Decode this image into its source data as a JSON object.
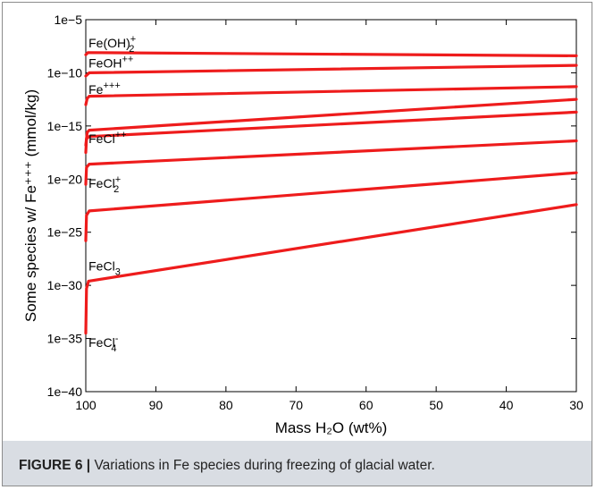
{
  "figure": {
    "label": "FIGURE 6 |",
    "caption": " Variations in Fe species during freezing of glacial water."
  },
  "chart_data": {
    "type": "line",
    "xlabel": "Mass H₂O (wt%)",
    "ylabel": "Some species w/ Fe⁺⁺⁺ (mmol/kg)",
    "x_reversed": true,
    "xlim": [
      100,
      30
    ],
    "y_scale": "log",
    "ylim_exponent": [
      -40,
      -5
    ],
    "x_ticks": [
      "100",
      "90",
      "80",
      "70",
      "60",
      "50",
      "40",
      "30"
    ],
    "x_tick_values": [
      100,
      90,
      80,
      70,
      60,
      50,
      40,
      30
    ],
    "y_ticks": [
      "1e−40",
      "1e−35",
      "1e−30",
      "1e−25",
      "1e−20",
      "1e−15",
      "1e−10",
      "1e−5"
    ],
    "y_tick_exponents": [
      -40,
      -35,
      -30,
      -25,
      -20,
      -15,
      -10,
      -5
    ],
    "grid": false,
    "line_color": "#ee1c1c",
    "series": [
      {
        "name": "Fe(OH)₂⁺",
        "x": [
          100,
          99.7,
          30
        ],
        "log_y": [
          -8.3,
          -8.1,
          -8.4
        ]
      },
      {
        "name": "FeOH⁺⁺",
        "x": [
          100,
          99.5,
          30
        ],
        "log_y": [
          -10.3,
          -10.0,
          -9.3
        ]
      },
      {
        "name": "Fe⁺⁺⁺",
        "x": [
          100,
          99.8,
          99.5,
          30
        ],
        "log_y": [
          -13.0,
          -12.4,
          -12.2,
          -11.3
        ]
      },
      {
        "name": "",
        "x": [
          100,
          99.8,
          99.5,
          30
        ],
        "log_y": [
          -16.8,
          -15.6,
          -15.4,
          -12.5
        ]
      },
      {
        "name": "FeCl⁺⁺",
        "x": [
          100,
          99.9,
          99.5,
          30
        ],
        "log_y": [
          -17.5,
          -16.2,
          -16.0,
          -13.7
        ]
      },
      {
        "name": "FeCl₂⁺",
        "x": [
          100,
          99.9,
          99.5,
          30
        ],
        "log_y": [
          -20.5,
          -18.9,
          -18.6,
          -16.4
        ]
      },
      {
        "name": "FeCl₃",
        "x": [
          100,
          99.9,
          99.5,
          30
        ],
        "log_y": [
          -25.8,
          -23.4,
          -23.0,
          -19.4
        ]
      },
      {
        "name": "FeCl₄⁻",
        "x": [
          100,
          99.9,
          99.6,
          30
        ],
        "log_y": [
          -34.5,
          -30.3,
          -29.6,
          -22.4
        ]
      }
    ],
    "annotations": [
      {
        "text": "Fe(OH)",
        "sub": "2",
        "sup": "+",
        "x": 99.6,
        "log_y": -7.6
      },
      {
        "text": "FeOH",
        "sub": "",
        "sup": "++",
        "x": 99.6,
        "log_y": -9.5
      },
      {
        "text": "Fe",
        "sub": "",
        "sup": "+++",
        "x": 99.6,
        "log_y": -12.0
      },
      {
        "text": "FeCl",
        "sub": "",
        "sup": "++",
        "x": 99.6,
        "log_y": -16.6
      },
      {
        "text": "FeCl",
        "sub": "2",
        "sup": "+",
        "x": 99.6,
        "log_y": -20.8
      },
      {
        "text": "FeCl",
        "sub": "3",
        "sup": "",
        "x": 99.6,
        "log_y": -28.6
      },
      {
        "text": "FeCl",
        "sub": "4",
        "sup": "-",
        "x": 99.6,
        "log_y": -35.8
      }
    ]
  }
}
